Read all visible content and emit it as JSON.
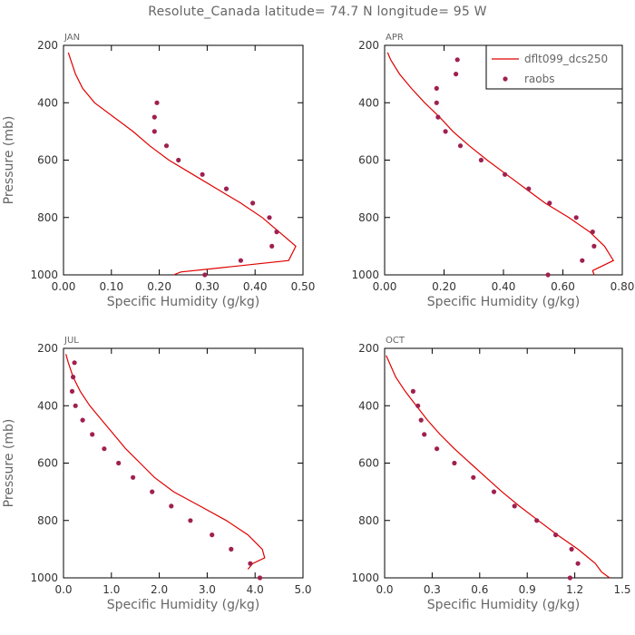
{
  "figure": {
    "title": "Resolute_Canada  latitude= 74.7 N longitude= 95 W"
  },
  "colors": {
    "model_line": "#e00000",
    "raobs_points": "#a02050",
    "axes": "#000000",
    "text": "#666666"
  },
  "legend": {
    "model_label": "dflt099_dcs250",
    "raobs_label": "raobs"
  },
  "chart_data": [
    {
      "type": "line",
      "panel_title": "JAN",
      "xlabel": "Specific Humidity (g/kg)",
      "ylabel": "Pressure (mb)",
      "xlim": [
        0,
        0.5
      ],
      "ylim": [
        1000,
        200
      ],
      "x_ticks": [
        "0.00",
        "0.10",
        "0.20",
        "0.30",
        "0.40",
        "0.50"
      ],
      "y_ticks": [
        "200",
        "400",
        "600",
        "800",
        "1000"
      ],
      "grid": false,
      "legend": null,
      "series": [
        {
          "name": "dflt099_dcs250",
          "type": "line",
          "points": [
            [
              0.01,
              225
            ],
            [
              0.015,
              250
            ],
            [
              0.025,
              300
            ],
            [
              0.04,
              350
            ],
            [
              0.065,
              400
            ],
            [
              0.105,
              450
            ],
            [
              0.145,
              500
            ],
            [
              0.18,
              550
            ],
            [
              0.22,
              600
            ],
            [
              0.27,
              650
            ],
            [
              0.32,
              700
            ],
            [
              0.37,
              750
            ],
            [
              0.415,
              800
            ],
            [
              0.45,
              850
            ],
            [
              0.485,
              900
            ],
            [
              0.47,
              950
            ],
            [
              0.33,
              975
            ],
            [
              0.245,
              990
            ],
            [
              0.23,
              1000
            ]
          ]
        },
        {
          "name": "raobs",
          "type": "scatter",
          "points": [
            [
              0.195,
              400
            ],
            [
              0.19,
              450
            ],
            [
              0.19,
              500
            ],
            [
              0.215,
              550
            ],
            [
              0.24,
              600
            ],
            [
              0.29,
              650
            ],
            [
              0.34,
              700
            ],
            [
              0.395,
              750
            ],
            [
              0.43,
              800
            ],
            [
              0.445,
              850
            ],
            [
              0.435,
              900
            ],
            [
              0.37,
              950
            ],
            [
              0.295,
              1000
            ]
          ]
        }
      ]
    },
    {
      "type": "line",
      "panel_title": "APR",
      "xlabel": "Specific Humidity (g/kg)",
      "ylabel": "",
      "xlim": [
        0,
        0.8
      ],
      "ylim": [
        1000,
        200
      ],
      "x_ticks": [
        "0.00",
        "0.20",
        "0.40",
        "0.60",
        "0.80"
      ],
      "y_ticks": [
        "200",
        "400",
        "600",
        "800",
        "1000"
      ],
      "grid": false,
      "legend": "top-right",
      "series": [
        {
          "name": "dflt099_dcs250",
          "type": "line",
          "points": [
            [
              0.01,
              225
            ],
            [
              0.02,
              250
            ],
            [
              0.05,
              300
            ],
            [
              0.09,
              350
            ],
            [
              0.135,
              400
            ],
            [
              0.185,
              450
            ],
            [
              0.23,
              500
            ],
            [
              0.285,
              550
            ],
            [
              0.345,
              600
            ],
            [
              0.41,
              650
            ],
            [
              0.475,
              700
            ],
            [
              0.54,
              750
            ],
            [
              0.62,
              800
            ],
            [
              0.69,
              850
            ],
            [
              0.74,
              900
            ],
            [
              0.77,
              950
            ],
            [
              0.7,
              985
            ],
            [
              0.705,
              1000
            ]
          ]
        },
        {
          "name": "raobs",
          "type": "scatter",
          "points": [
            [
              0.245,
              250
            ],
            [
              0.24,
              300
            ],
            [
              0.175,
              350
            ],
            [
              0.175,
              400
            ],
            [
              0.18,
              450
            ],
            [
              0.205,
              500
            ],
            [
              0.255,
              550
            ],
            [
              0.325,
              600
            ],
            [
              0.405,
              650
            ],
            [
              0.485,
              700
            ],
            [
              0.555,
              750
            ],
            [
              0.645,
              800
            ],
            [
              0.7,
              850
            ],
            [
              0.705,
              900
            ],
            [
              0.665,
              950
            ],
            [
              0.55,
              1000
            ]
          ]
        }
      ]
    },
    {
      "type": "line",
      "panel_title": "JUL",
      "xlabel": "Specific Humidity (g/kg)",
      "ylabel": "Pressure (mb)",
      "xlim": [
        0,
        5
      ],
      "ylim": [
        1000,
        200
      ],
      "x_ticks": [
        "0.0",
        "1.0",
        "2.0",
        "3.0",
        "4.0",
        "5.0"
      ],
      "y_ticks": [
        "200",
        "400",
        "600",
        "800",
        "1000"
      ],
      "grid": false,
      "legend": null,
      "series": [
        {
          "name": "dflt099_dcs250",
          "type": "line",
          "points": [
            [
              0.05,
              220
            ],
            [
              0.1,
              250
            ],
            [
              0.2,
              300
            ],
            [
              0.35,
              350
            ],
            [
              0.55,
              400
            ],
            [
              0.8,
              450
            ],
            [
              1.05,
              500
            ],
            [
              1.3,
              550
            ],
            [
              1.6,
              600
            ],
            [
              1.9,
              650
            ],
            [
              2.3,
              700
            ],
            [
              2.85,
              750
            ],
            [
              3.4,
              800
            ],
            [
              3.85,
              850
            ],
            [
              4.15,
              900
            ],
            [
              4.2,
              930
            ],
            [
              3.95,
              950
            ],
            [
              3.85,
              970
            ]
          ]
        },
        {
          "name": "raobs",
          "type": "scatter",
          "points": [
            [
              0.23,
              250
            ],
            [
              0.2,
              300
            ],
            [
              0.18,
              350
            ],
            [
              0.25,
              400
            ],
            [
              0.4,
              450
            ],
            [
              0.6,
              500
            ],
            [
              0.85,
              550
            ],
            [
              1.15,
              600
            ],
            [
              1.45,
              650
            ],
            [
              1.85,
              700
            ],
            [
              2.25,
              750
            ],
            [
              2.65,
              800
            ],
            [
              3.1,
              850
            ],
            [
              3.5,
              900
            ],
            [
              3.9,
              950
            ],
            [
              4.1,
              1000
            ]
          ]
        }
      ]
    },
    {
      "type": "line",
      "panel_title": "OCT",
      "xlabel": "Specific Humidity (g/kg)",
      "ylabel": "",
      "xlim": [
        0,
        1.5
      ],
      "ylim": [
        1000,
        200
      ],
      "x_ticks": [
        "0.0",
        "0.3",
        "0.6",
        "0.9",
        "1.2",
        "1.5"
      ],
      "y_ticks": [
        "200",
        "400",
        "600",
        "800",
        "1000"
      ],
      "grid": false,
      "legend": null,
      "series": [
        {
          "name": "dflt099_dcs250",
          "type": "line",
          "points": [
            [
              0.01,
              225
            ],
            [
              0.03,
              250
            ],
            [
              0.07,
              300
            ],
            [
              0.13,
              350
            ],
            [
              0.2,
              400
            ],
            [
              0.27,
              450
            ],
            [
              0.35,
              500
            ],
            [
              0.44,
              550
            ],
            [
              0.54,
              600
            ],
            [
              0.64,
              650
            ],
            [
              0.74,
              700
            ],
            [
              0.85,
              750
            ],
            [
              0.97,
              800
            ],
            [
              1.09,
              850
            ],
            [
              1.22,
              900
            ],
            [
              1.33,
              950
            ],
            [
              1.37,
              980
            ],
            [
              1.42,
              1000
            ]
          ]
        },
        {
          "name": "raobs",
          "type": "scatter",
          "points": [
            [
              0.18,
              350
            ],
            [
              0.21,
              400
            ],
            [
              0.23,
              450
            ],
            [
              0.25,
              500
            ],
            [
              0.33,
              550
            ],
            [
              0.44,
              600
            ],
            [
              0.56,
              650
            ],
            [
              0.69,
              700
            ],
            [
              0.82,
              750
            ],
            [
              0.96,
              800
            ],
            [
              1.08,
              850
            ],
            [
              1.18,
              900
            ],
            [
              1.22,
              950
            ],
            [
              1.17,
              1000
            ]
          ]
        }
      ]
    }
  ]
}
